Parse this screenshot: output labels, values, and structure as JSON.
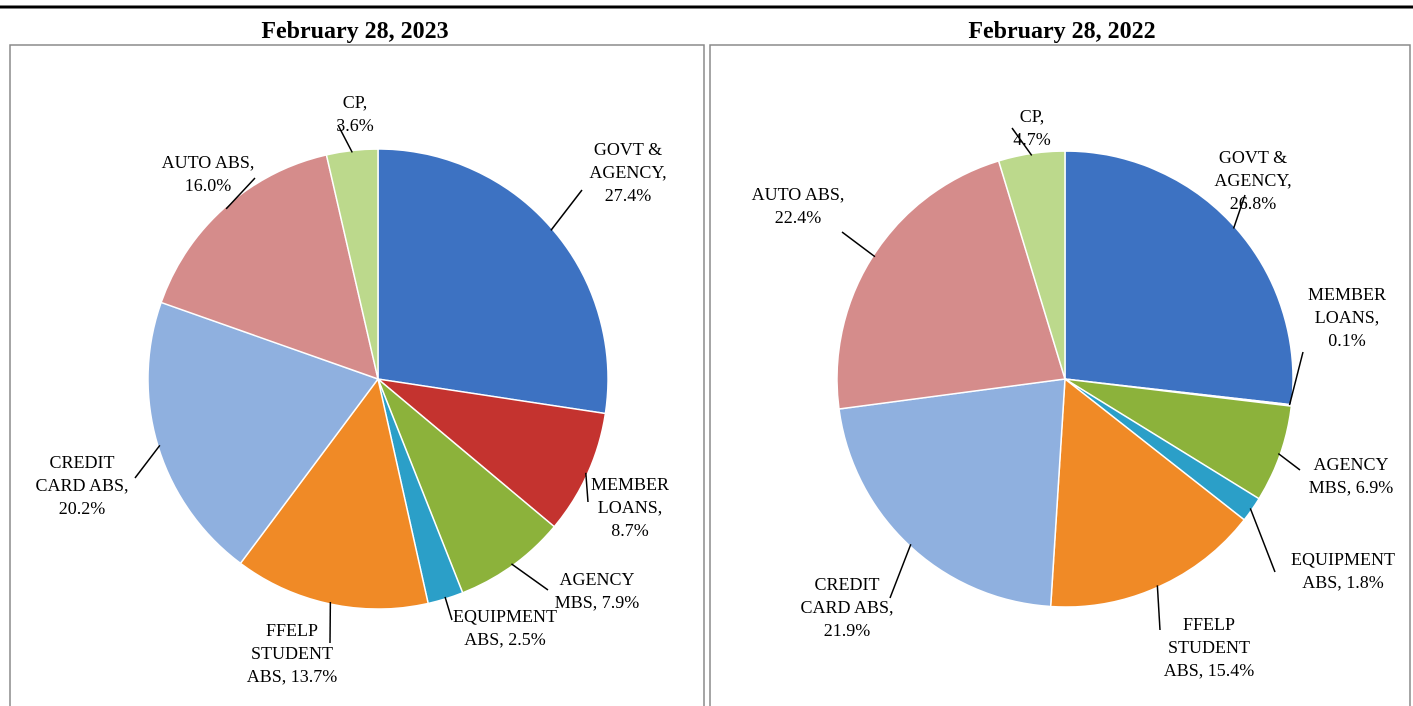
{
  "chart_data": [
    {
      "type": "pie",
      "title": "February 28, 2023",
      "values": [
        27.4,
        8.7,
        7.9,
        2.5,
        13.7,
        20.2,
        16.0,
        3.6
      ],
      "value_labels": [
        [
          "GOVT &",
          "AGENCY,",
          "27.4%"
        ],
        [
          "MEMBER",
          "LOANS,",
          "8.7%"
        ],
        [
          "AGENCY",
          "MBS, 7.9%"
        ],
        [
          "EQUIPMENT",
          "ABS, 2.5%"
        ],
        [
          "FFELP",
          "STUDENT",
          "ABS, 13.7%"
        ],
        [
          "CREDIT",
          "CARD ABS,",
          "20.2%"
        ],
        [
          "AUTO ABS,",
          "16.0%"
        ],
        [
          "CP,",
          "3.6%"
        ]
      ],
      "colors": [
        "#3d72c2",
        "#c4332f",
        "#8cb23b",
        "#2b9fc8",
        "#f08a26",
        "#8fb0df",
        "#d58c8b",
        "#bcd98c"
      ]
    },
    {
      "type": "pie",
      "title": "February 28, 2022",
      "values": [
        26.8,
        0.1,
        6.9,
        1.8,
        15.4,
        21.9,
        22.4,
        4.7
      ],
      "value_labels": [
        [
          "GOVT &",
          "AGENCY,",
          "26.8%"
        ],
        [
          "MEMBER",
          "LOANS,",
          "0.1%"
        ],
        [
          "AGENCY",
          "MBS, 6.9%"
        ],
        [
          "EQUIPMENT",
          "ABS, 1.8%"
        ],
        [
          "FFELP",
          "STUDENT",
          "ABS, 15.4%"
        ],
        [
          "CREDIT",
          "CARD ABS,",
          "21.9%"
        ],
        [
          "AUTO ABS,",
          "22.4%"
        ],
        [
          "CP,",
          "4.7%"
        ]
      ],
      "colors": [
        "#3d72c2",
        "#c4332f",
        "#8cb23b",
        "#2b9fc8",
        "#f08a26",
        "#8fb0df",
        "#d58c8b",
        "#bcd98c"
      ]
    }
  ]
}
